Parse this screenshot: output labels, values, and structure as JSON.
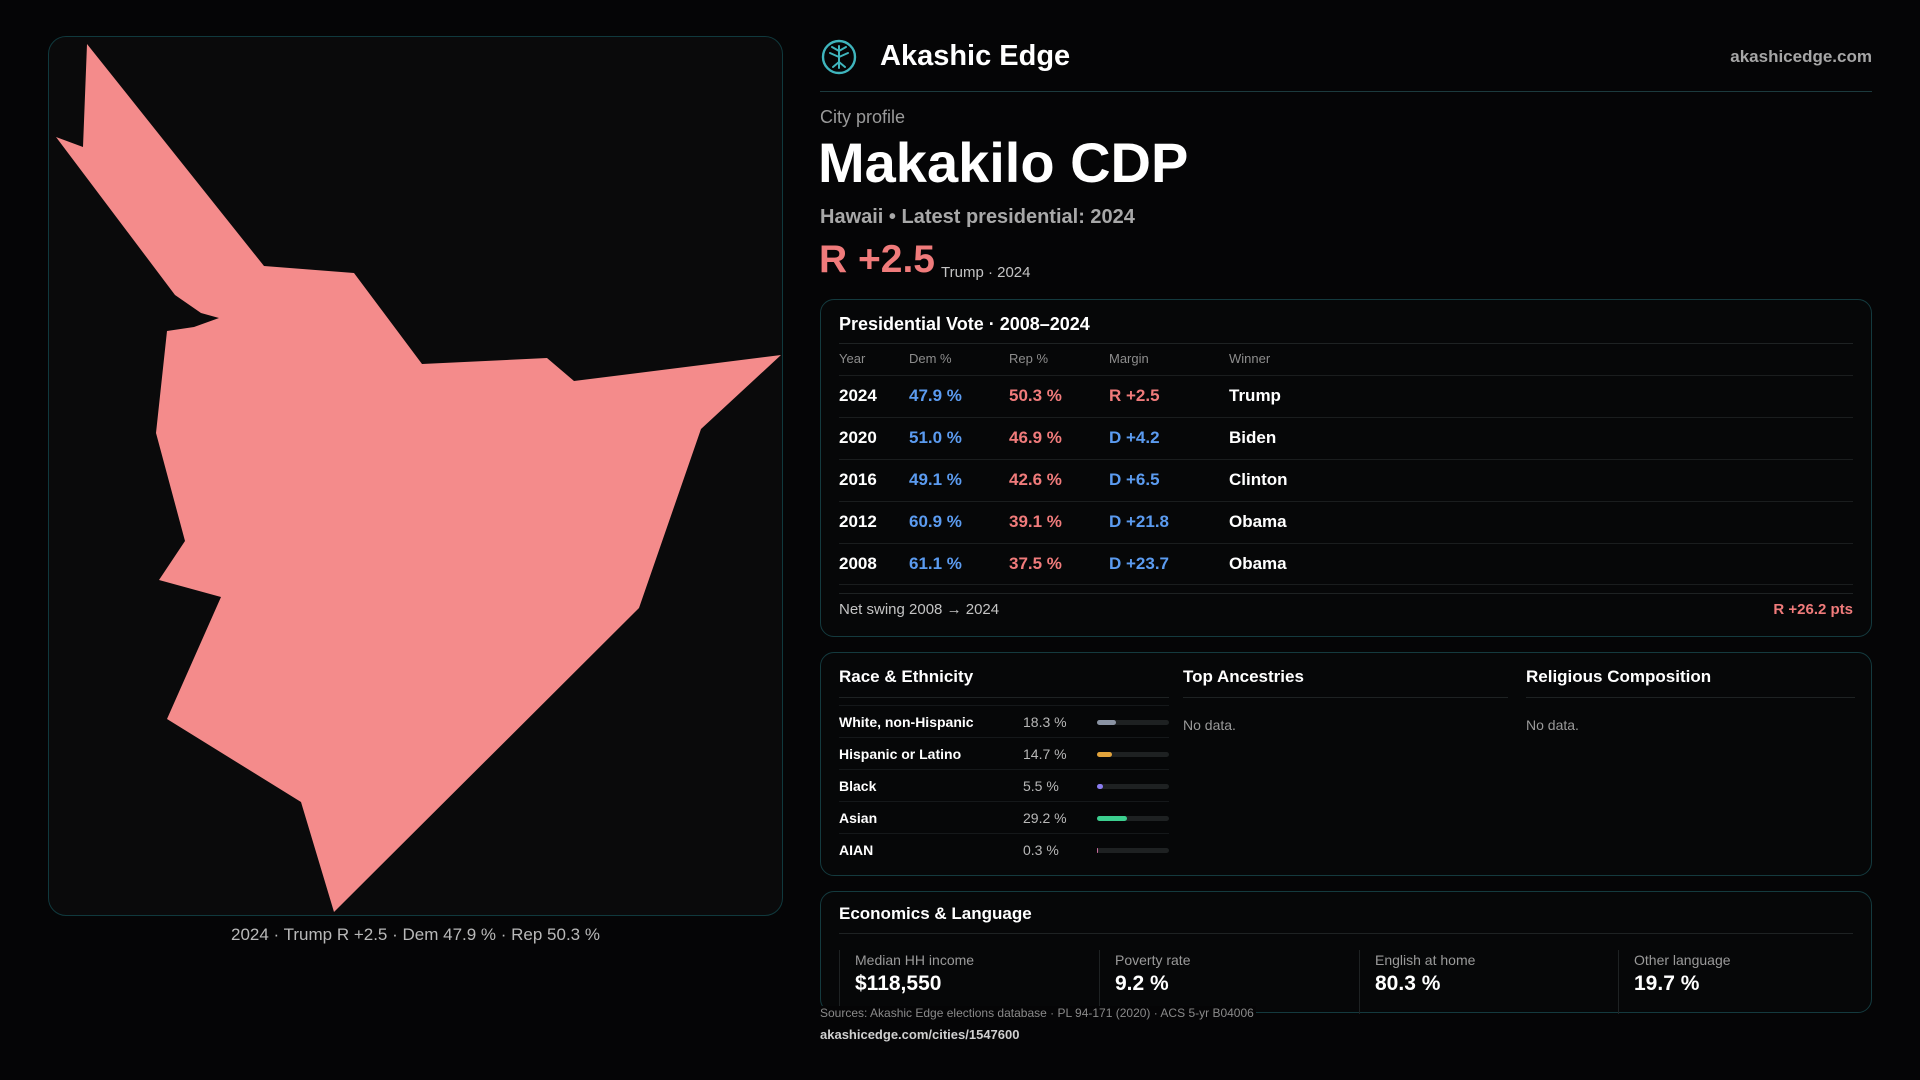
{
  "brand": {
    "name": "Akashic Edge",
    "domain": "akashicedge.com",
    "logo_icon": "tree-logo-icon",
    "accent": "#3fb5bd"
  },
  "profile": {
    "kicker": "City profile",
    "title": "Makakilo CDP",
    "subtitle": "Hawaii • Latest presidential: 2024",
    "margin": "R +2.5",
    "margin_note": "Trump · 2024"
  },
  "map": {
    "caption": "2024 · Trump R +2.5 · Dem 47.9 % · Rep 50.3 %",
    "fill": "#f48b8b"
  },
  "vote": {
    "title": "Presidential Vote · 2008–2024",
    "headers": [
      "Year",
      "Dem %",
      "Rep %",
      "Margin",
      "Winner"
    ],
    "rows": [
      {
        "year": "2024",
        "dem": "47.9 %",
        "rep": "50.3 %",
        "margin": "R +2.5",
        "party": "rep",
        "winner": "Trump"
      },
      {
        "year": "2020",
        "dem": "51.0 %",
        "rep": "46.9 %",
        "margin": "D +4.2",
        "party": "dem",
        "winner": "Biden"
      },
      {
        "year": "2016",
        "dem": "49.1 %",
        "rep": "42.6 %",
        "margin": "D +6.5",
        "party": "dem",
        "winner": "Clinton"
      },
      {
        "year": "2012",
        "dem": "60.9 %",
        "rep": "39.1 %",
        "margin": "D +21.8",
        "party": "dem",
        "winner": "Obama"
      },
      {
        "year": "2008",
        "dem": "61.1 %",
        "rep": "37.5 %",
        "margin": "D +23.7",
        "party": "dem",
        "winner": "Obama"
      }
    ],
    "swing_label": "Net swing 2008 → 2024",
    "swing_value": "R +26.2 pts"
  },
  "race": {
    "title": "Race & Ethnicity",
    "items": [
      {
        "label": "White, non-Hispanic",
        "value": "18.3 %",
        "pct": 18.3,
        "color": "#8a93a3"
      },
      {
        "label": "Hispanic or Latino",
        "value": "14.7 %",
        "pct": 14.7,
        "color": "#e2a33b"
      },
      {
        "label": "Black",
        "value": "5.5 %",
        "pct": 5.5,
        "color": "#8a7cf0"
      },
      {
        "label": "Asian",
        "value": "29.2 %",
        "pct": 29.2,
        "color": "#3ccf8f"
      },
      {
        "label": "AIAN",
        "value": "0.3 %",
        "pct": 0.3,
        "color": "#c86b9b"
      }
    ]
  },
  "ancestries": {
    "title": "Top Ancestries",
    "empty": "No data."
  },
  "religion": {
    "title": "Religious Composition",
    "empty": "No data."
  },
  "economics": {
    "title": "Economics & Language",
    "stats": [
      {
        "label": "Median HH income",
        "value": "$118,550"
      },
      {
        "label": "Poverty rate",
        "value": "9.2 %"
      },
      {
        "label": "English at home",
        "value": "80.3 %"
      },
      {
        "label": "Other language",
        "value": "19.7 %"
      }
    ]
  },
  "footer": {
    "sources": "Sources: Akashic Edge elections database · PL 94-171 (2020) · ACS 5-yr B04006",
    "url": "akashicedge.com/cities/1547600"
  }
}
